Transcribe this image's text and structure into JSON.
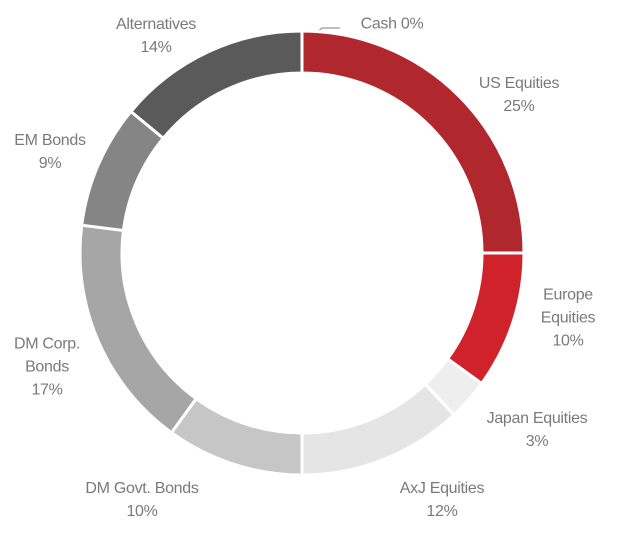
{
  "chart_data": {
    "type": "donut",
    "categories": [
      "Cash",
      "US Equities",
      "Europe Equities",
      "Japan Equities",
      "AxJ Equities",
      "DM Govt. Bonds",
      "DM Corp. Bonds",
      "EM Bonds",
      "Alternatives"
    ],
    "values": [
      0,
      25,
      10,
      3,
      12,
      10,
      17,
      9,
      14
    ],
    "value_labels": [
      "0%",
      "25%",
      "10%",
      "3%",
      "12%",
      "10%",
      "17%",
      "9%",
      "14%"
    ],
    "colors": [
      "#b0282e",
      "#b0282e",
      "#d0222b",
      "#eeeeee",
      "#e5e5e5",
      "#c6c6c6",
      "#a6a6a6",
      "#858585",
      "#5a5a5a"
    ]
  }
}
